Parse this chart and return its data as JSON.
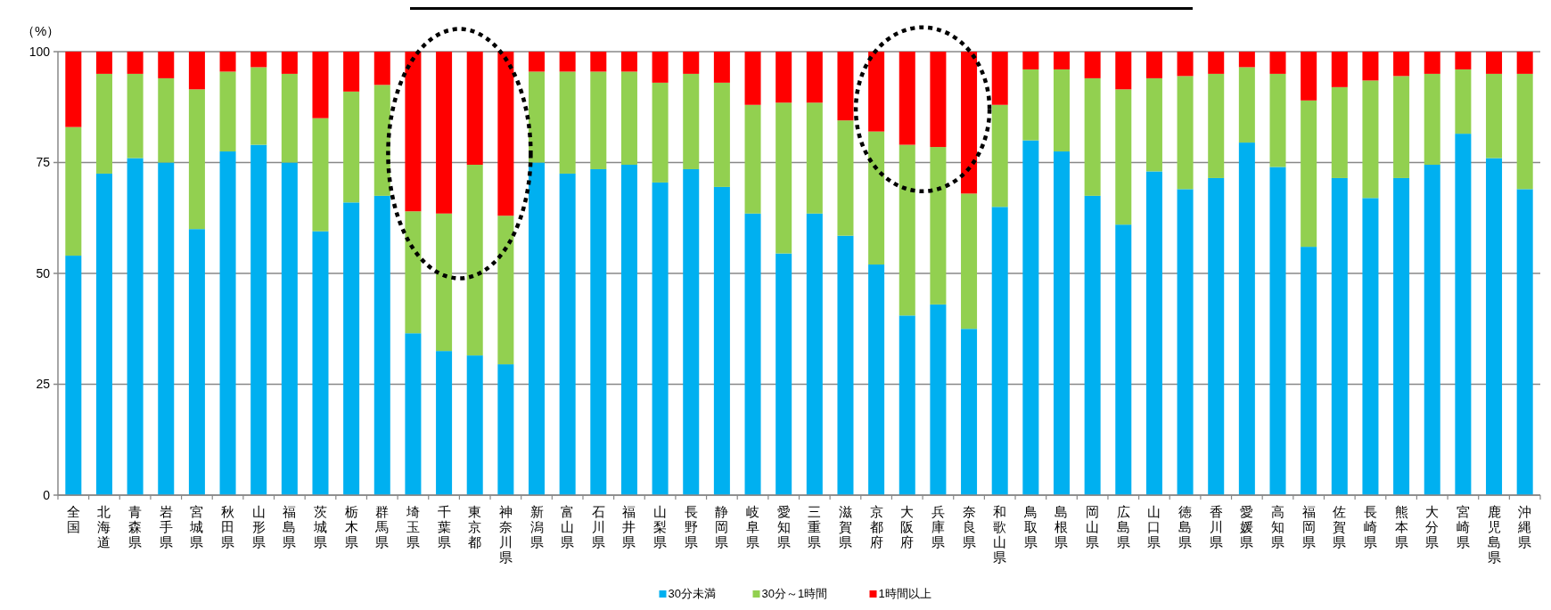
{
  "chart_data": {
    "type": "bar",
    "stacked": true,
    "ylabel": "（%）",
    "categories": [
      "全国",
      "北海道",
      "青森県",
      "岩手県",
      "宮城県",
      "秋田県",
      "山形県",
      "福島県",
      "茨城県",
      "栃木県",
      "群馬県",
      "埼玉県",
      "千葉県",
      "東京都",
      "神奈川県",
      "新潟県",
      "富山県",
      "石川県",
      "福井県",
      "山梨県",
      "長野県",
      "静岡県",
      "岐阜県",
      "愛知県",
      "三重県",
      "滋賀県",
      "京都府",
      "大阪府",
      "兵庫県",
      "奈良県",
      "和歌山県",
      "鳥取県",
      "島根県",
      "岡山県",
      "広島県",
      "山口県",
      "徳島県",
      "香川県",
      "愛媛県",
      "高知県",
      "福岡県",
      "佐賀県",
      "長崎県",
      "熊本県",
      "大分県",
      "宮崎県",
      "鹿児島県",
      "沖縄県"
    ],
    "series": [
      {
        "name": "30分未満",
        "color": "#00b0f0",
        "values": [
          54,
          72.5,
          76,
          75,
          60,
          77.5,
          79,
          75,
          59.5,
          66,
          67.5,
          36.5,
          32.5,
          31.5,
          29.5,
          75,
          72.5,
          73.5,
          74.5,
          70.5,
          73.5,
          69.5,
          63.5,
          54.5,
          63.5,
          58.5,
          52,
          40.5,
          43,
          37.5,
          65,
          80,
          77.5,
          67.5,
          61,
          73,
          69,
          71.5,
          79.5,
          74,
          56,
          71.5,
          67,
          71.5,
          74.5,
          81.5,
          76,
          69
        ]
      },
      {
        "name": "30分～1時間",
        "color": "#92d050",
        "values": [
          29,
          22.5,
          19,
          19,
          31.5,
          18,
          17.5,
          20,
          25.5,
          25,
          25,
          27.5,
          31,
          43,
          33.5,
          20.5,
          23,
          22,
          21,
          22.5,
          21.5,
          23.5,
          24.5,
          34,
          25,
          26,
          30,
          38.5,
          35.5,
          30.5,
          23,
          16,
          18.5,
          26.5,
          30.5,
          21,
          25.5,
          23.5,
          17,
          21,
          33,
          20.5,
          26.5,
          23,
          20.5,
          14.5,
          19,
          26
        ]
      },
      {
        "name": "1時間以上",
        "color": "#ff0000",
        "values": [
          17,
          5,
          5,
          6,
          8.5,
          4.5,
          3.5,
          5,
          15,
          9,
          7.5,
          36,
          36.5,
          25.5,
          37,
          4.5,
          4.5,
          4.5,
          4.5,
          7,
          5,
          7,
          12,
          11.5,
          11.5,
          15.5,
          18,
          21,
          21.5,
          32,
          12,
          4,
          4,
          6,
          8.5,
          6,
          5.5,
          5,
          3.5,
          5,
          11,
          8,
          6.5,
          5.5,
          5,
          4,
          5,
          5
        ]
      }
    ],
    "ylim": [
      0,
      100
    ],
    "yticks": [
      0,
      25,
      50,
      75,
      100
    ],
    "grid": "y",
    "legend": "bottom"
  }
}
